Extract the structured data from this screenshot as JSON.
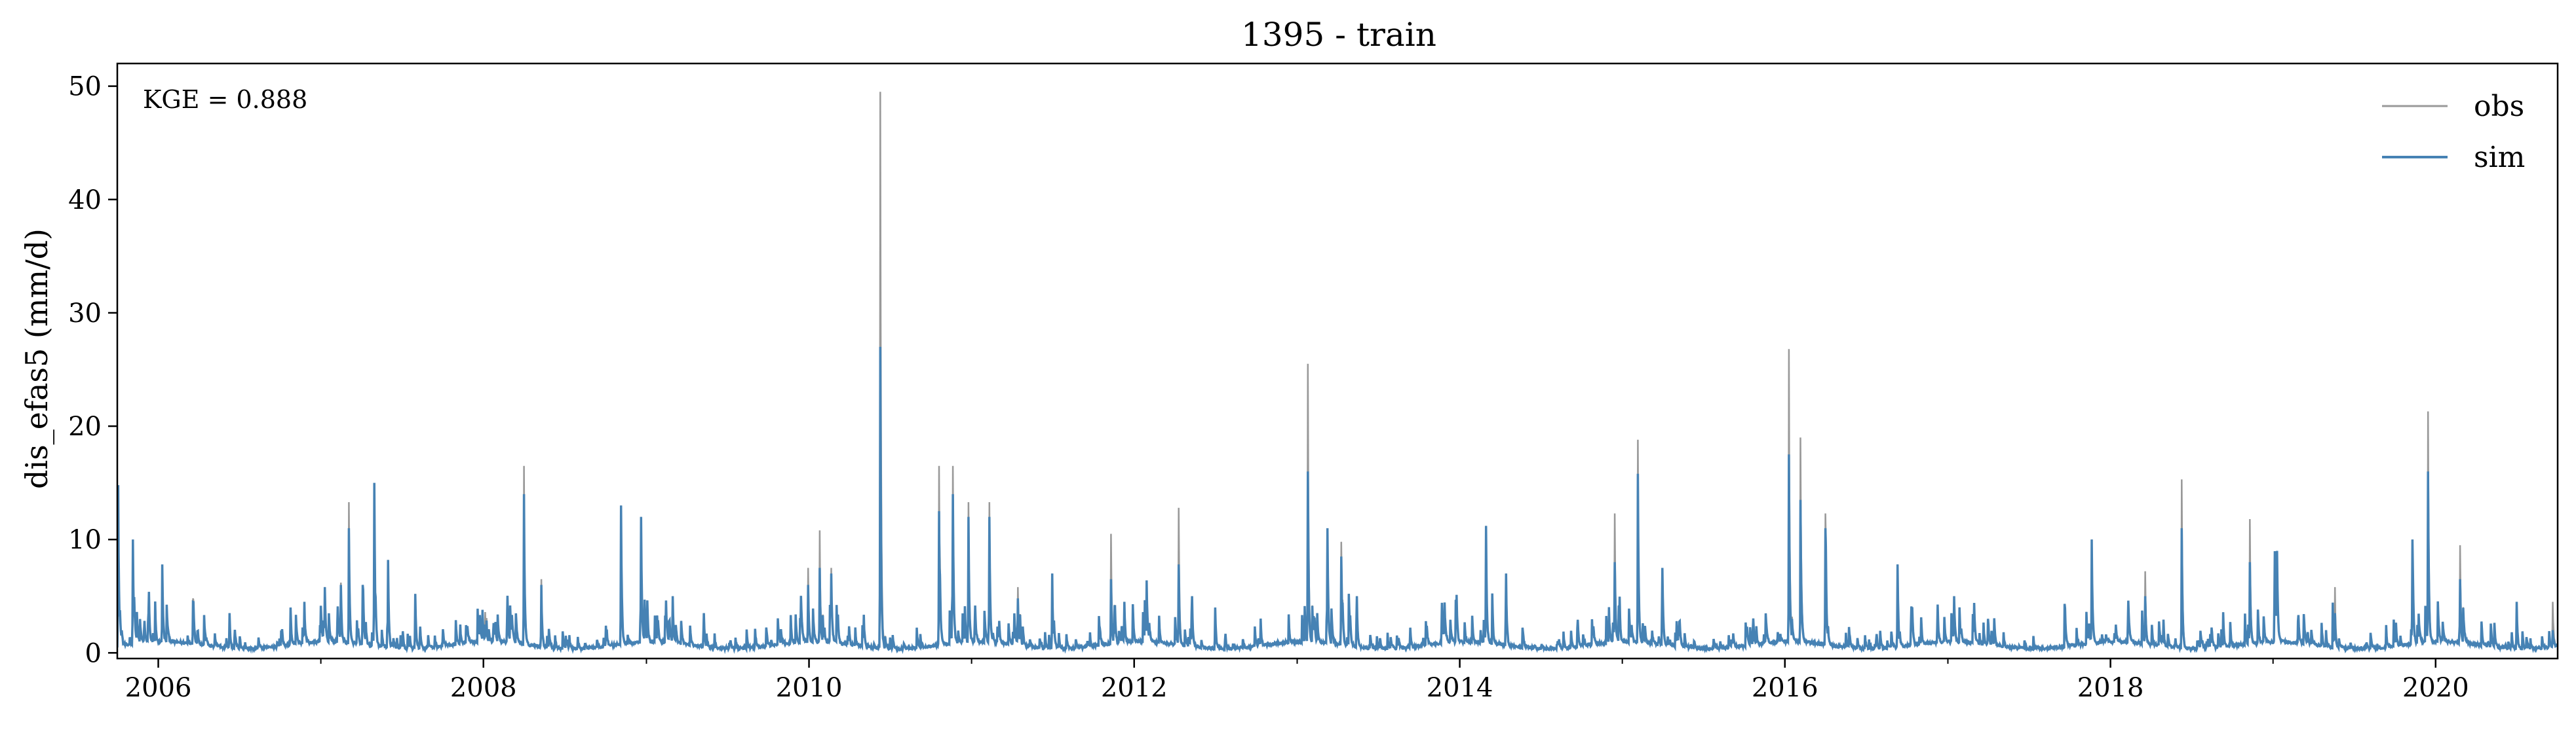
{
  "chart_data": {
    "type": "line",
    "title": "1395 - train",
    "xlabel": "",
    "ylabel": "dis_efas5 (mm/d)",
    "annotation": "KGE = 0.888",
    "xlim": [
      "2005-10-01",
      "2020-10-01"
    ],
    "ylim": [
      -0.5,
      52
    ],
    "x_ticks": [
      "2006",
      "2008",
      "2010",
      "2012",
      "2014",
      "2016",
      "2018",
      "2020"
    ],
    "y_ticks": [
      0,
      10,
      20,
      30,
      40,
      50
    ],
    "grid": false,
    "legend_position": "top-right",
    "series": [
      {
        "name": "obs",
        "color": "#999999",
        "peaks": [
          [
            "2005-10-03",
            14.5
          ],
          [
            "2005-11-05",
            10.0
          ],
          [
            "2005-12-10",
            3.5
          ],
          [
            "2006-01-10",
            7.5
          ],
          [
            "2006-03-20",
            4.8
          ],
          [
            "2006-06-10",
            3.5
          ],
          [
            "2006-10-25",
            4.0
          ],
          [
            "2006-11-25",
            4.5
          ],
          [
            "2007-01-10",
            5.8
          ],
          [
            "2007-02-15",
            6.2
          ],
          [
            "2007-03-05",
            13.3
          ],
          [
            "2007-04-05",
            6.0
          ],
          [
            "2007-05-01",
            14.8
          ],
          [
            "2007-06-01",
            8.2
          ],
          [
            "2007-08-01",
            5.2
          ],
          [
            "2007-11-10",
            2.5
          ],
          [
            "2008-01-05",
            3.6
          ],
          [
            "2008-03-01",
            2.8
          ],
          [
            "2008-04-01",
            16.5
          ],
          [
            "2008-05-10",
            6.5
          ],
          [
            "2008-11-05",
            13.0
          ],
          [
            "2008-12-20",
            12.0
          ],
          [
            "2009-03-01",
            5.0
          ],
          [
            "2009-05-10",
            3.5
          ],
          [
            "2009-12-30",
            7.5
          ],
          [
            "2010-01-25",
            10.8
          ],
          [
            "2010-02-20",
            7.5
          ],
          [
            "2010-06-10",
            49.5
          ],
          [
            "2010-10-20",
            16.5
          ],
          [
            "2010-11-20",
            16.5
          ],
          [
            "2010-12-25",
            13.3
          ],
          [
            "2011-02-10",
            13.3
          ],
          [
            "2011-04-15",
            5.8
          ],
          [
            "2011-07-01",
            7.0
          ],
          [
            "2011-11-10",
            10.5
          ],
          [
            "2011-12-10",
            4.5
          ],
          [
            "2012-04-10",
            12.8
          ],
          [
            "2012-05-10",
            5.0
          ],
          [
            "2012-07-01",
            4.0
          ],
          [
            "2013-01-25",
            25.5
          ],
          [
            "2013-03-10",
            10.8
          ],
          [
            "2013-04-10",
            9.8
          ],
          [
            "2013-05-15",
            5.0
          ],
          [
            "2014-03-01",
            11.2
          ],
          [
            "2014-04-15",
            7.0
          ],
          [
            "2014-12-15",
            12.3
          ],
          [
            "2015-02-05",
            18.8
          ],
          [
            "2015-04-01",
            7.5
          ],
          [
            "2016-01-10",
            26.8
          ],
          [
            "2016-02-05",
            19.0
          ],
          [
            "2016-04-01",
            12.3
          ],
          [
            "2016-09-10",
            7.8
          ],
          [
            "2017-01-15",
            5.0
          ],
          [
            "2017-04-01",
            3.0
          ],
          [
            "2017-11-20",
            10.0
          ],
          [
            "2018-03-20",
            7.2
          ],
          [
            "2018-06-10",
            15.3
          ],
          [
            "2018-11-10",
            11.8
          ],
          [
            "2019-01-10",
            9.0
          ],
          [
            "2019-05-20",
            5.8
          ],
          [
            "2019-11-10",
            10.0
          ],
          [
            "2019-12-15",
            21.3
          ],
          [
            "2020-02-25",
            9.5
          ],
          [
            "2020-07-01",
            4.5
          ],
          [
            "2020-09-20",
            4.5
          ]
        ]
      },
      {
        "name": "sim",
        "color": "#4682b4",
        "peaks": [
          [
            "2005-10-03",
            14.8
          ],
          [
            "2005-11-05",
            10.0
          ],
          [
            "2005-12-10",
            3.5
          ],
          [
            "2006-01-10",
            7.8
          ],
          [
            "2006-03-20",
            4.5
          ],
          [
            "2006-06-10",
            3.5
          ],
          [
            "2006-10-25",
            4.0
          ],
          [
            "2006-11-25",
            4.5
          ],
          [
            "2007-01-10",
            5.8
          ],
          [
            "2007-02-15",
            6.0
          ],
          [
            "2007-03-05",
            11.0
          ],
          [
            "2007-04-05",
            6.0
          ],
          [
            "2007-05-01",
            15.0
          ],
          [
            "2007-06-01",
            8.2
          ],
          [
            "2007-08-01",
            5.2
          ],
          [
            "2007-11-10",
            2.5
          ],
          [
            "2008-01-05",
            2.5
          ],
          [
            "2008-03-01",
            2.5
          ],
          [
            "2008-04-01",
            14.0
          ],
          [
            "2008-05-10",
            6.0
          ],
          [
            "2008-11-05",
            13.0
          ],
          [
            "2008-12-20",
            12.0
          ],
          [
            "2009-03-01",
            5.0
          ],
          [
            "2009-05-10",
            3.5
          ],
          [
            "2009-12-30",
            6.0
          ],
          [
            "2010-01-25",
            7.5
          ],
          [
            "2010-02-20",
            7.0
          ],
          [
            "2010-06-10",
            27.0
          ],
          [
            "2010-10-20",
            12.5
          ],
          [
            "2010-11-20",
            14.0
          ],
          [
            "2010-12-25",
            12.0
          ],
          [
            "2011-02-10",
            12.0
          ],
          [
            "2011-04-15",
            4.8
          ],
          [
            "2011-07-01",
            7.0
          ],
          [
            "2011-11-10",
            6.5
          ],
          [
            "2011-12-10",
            4.5
          ],
          [
            "2012-04-10",
            7.8
          ],
          [
            "2012-05-10",
            5.0
          ],
          [
            "2012-07-01",
            4.0
          ],
          [
            "2013-01-25",
            16.0
          ],
          [
            "2013-03-10",
            11.0
          ],
          [
            "2013-04-10",
            8.5
          ],
          [
            "2013-05-15",
            5.0
          ],
          [
            "2014-03-01",
            11.2
          ],
          [
            "2014-04-15",
            7.0
          ],
          [
            "2014-12-15",
            8.0
          ],
          [
            "2015-02-05",
            15.8
          ],
          [
            "2015-04-01",
            7.5
          ],
          [
            "2016-01-10",
            17.5
          ],
          [
            "2016-02-05",
            13.5
          ],
          [
            "2016-04-01",
            11.0
          ],
          [
            "2016-09-10",
            7.8
          ],
          [
            "2017-01-15",
            5.0
          ],
          [
            "2017-04-01",
            3.0
          ],
          [
            "2017-11-20",
            10.0
          ],
          [
            "2018-03-20",
            5.0
          ],
          [
            "2018-06-10",
            11.0
          ],
          [
            "2018-11-10",
            8.0
          ],
          [
            "2019-01-10",
            9.0
          ],
          [
            "2019-05-20",
            3.5
          ],
          [
            "2019-11-10",
            10.0
          ],
          [
            "2019-12-15",
            16.0
          ],
          [
            "2020-02-25",
            6.5
          ],
          [
            "2020-07-01",
            4.5
          ],
          [
            "2020-09-20",
            2.0
          ]
        ]
      }
    ]
  }
}
